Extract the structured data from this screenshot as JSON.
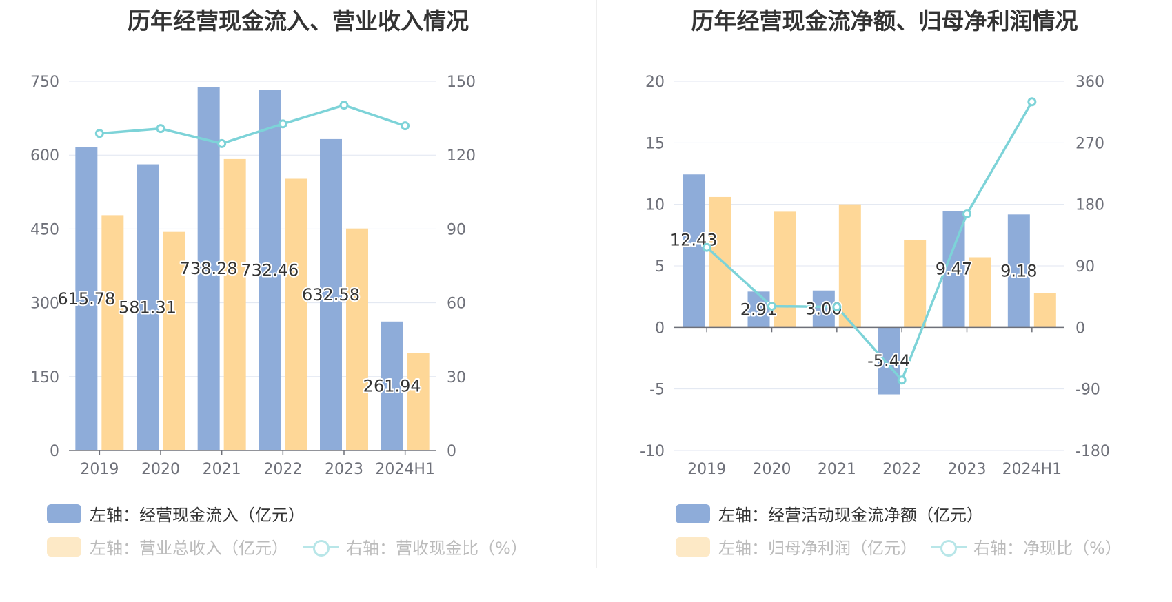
{
  "chart_data": [
    {
      "type": "bar",
      "title": "历年经营现金流入、营业收入情况",
      "categories": [
        "2019",
        "2020",
        "2021",
        "2022",
        "2023",
        "2024H1"
      ],
      "left_axis": {
        "ticks": [
          "0",
          "150",
          "300",
          "450",
          "600",
          "750"
        ],
        "range": [
          0,
          750
        ]
      },
      "right_axis": {
        "ticks": [
          "0",
          "30",
          "60",
          "90",
          "120",
          "150"
        ],
        "range": [
          0,
          150
        ]
      },
      "series": [
        {
          "name": "左轴：经营现金流入（亿元）",
          "type": "bar",
          "axis": "left",
          "color": "#8eacd9",
          "values": [
            615.78,
            581.31,
            738.28,
            732.46,
            632.58,
            261.94
          ],
          "labels": [
            "615.78",
            "581.31",
            "738.28",
            "732.46",
            "632.58",
            "261.94"
          ]
        },
        {
          "name": "左轴：营业总收入（亿元）",
          "type": "bar",
          "axis": "left",
          "color": "#fed797",
          "values": [
            478,
            444,
            592,
            552,
            451,
            198
          ]
        },
        {
          "name": "右轴：营收现金比（%）",
          "type": "line",
          "axis": "right",
          "color": "#7dd3d8",
          "values": [
            128.8,
            130.8,
            124.7,
            132.7,
            140.3,
            131.9
          ]
        }
      ],
      "legend": {
        "placement": "bottom",
        "dimmed": [
          1,
          2
        ]
      },
      "grid": true
    },
    {
      "type": "bar",
      "title": "历年经营现金流净额、归母净利润情况",
      "categories": [
        "2019",
        "2020",
        "2021",
        "2022",
        "2023",
        "2024H1"
      ],
      "left_axis": {
        "ticks": [
          "-10",
          "-5",
          "0",
          "5",
          "10",
          "15",
          "20"
        ],
        "range": [
          -10,
          20
        ]
      },
      "right_axis": {
        "ticks": [
          "-180",
          "-90",
          "0",
          "90",
          "180",
          "270",
          "360"
        ],
        "range": [
          -180,
          360
        ]
      },
      "series": [
        {
          "name": "左轴：经营活动现金流净额（亿元）",
          "type": "bar",
          "axis": "left",
          "color": "#8eacd9",
          "values": [
            12.43,
            2.91,
            3.0,
            -5.44,
            9.47,
            9.18
          ],
          "labels": [
            "12.43",
            "2.91",
            "3.00",
            "-5.44",
            "9.47",
            "9.18"
          ]
        },
        {
          "name": "左轴：归母净利润（亿元）",
          "type": "bar",
          "axis": "left",
          "color": "#fed797",
          "values": [
            10.6,
            9.4,
            10.0,
            7.1,
            5.7,
            2.8
          ]
        },
        {
          "name": "右轴：净现比（%）",
          "type": "line",
          "axis": "right",
          "color": "#7dd3d8",
          "values": [
            117,
            31,
            30,
            -77,
            166,
            330
          ]
        }
      ],
      "legend": {
        "placement": "bottom",
        "dimmed": [
          1,
          2
        ]
      },
      "grid": true
    }
  ]
}
